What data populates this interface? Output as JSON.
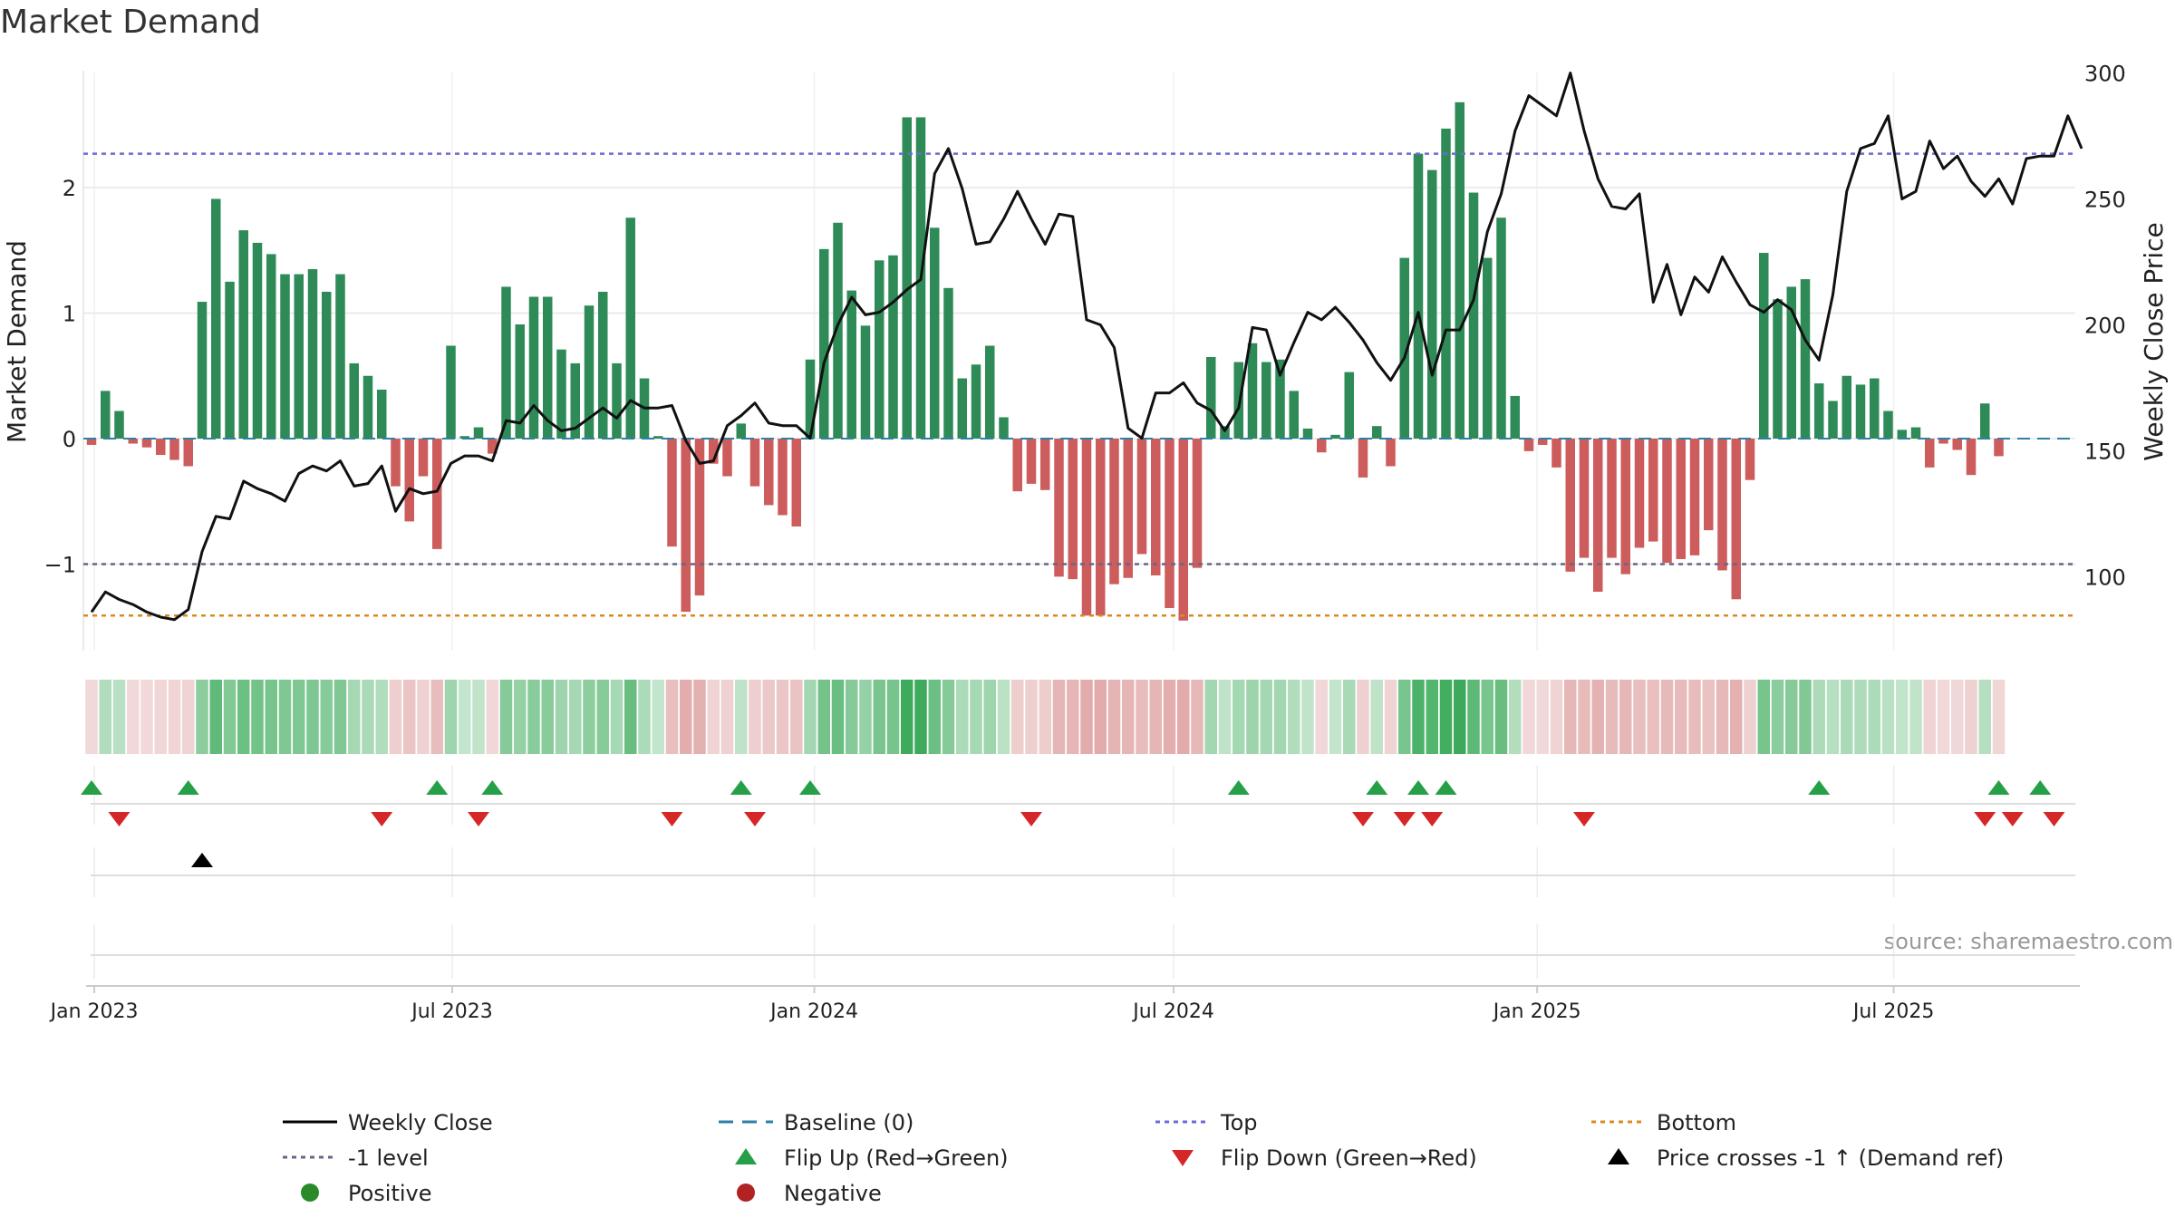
{
  "chart_data": {
    "type": "bar",
    "title": "Market Demand",
    "ylabel_left": "Market Demand",
    "ylabel_right": "Weekly Close Price",
    "ylim_left": [
      -1.7,
      2.9
    ],
    "ylim_right": [
      68,
      303
    ],
    "yticks_left": [
      -1,
      0,
      1,
      2
    ],
    "yticks_left_labels": [
      "−1",
      "0",
      "1",
      "2"
    ],
    "yticks_right": [
      100,
      150,
      200,
      250,
      300
    ],
    "xticks": [
      {
        "label": "Jan 2023",
        "week": 1.2
      },
      {
        "label": "Jul 2023",
        "week": 27.1
      },
      {
        "label": "Jan 2024",
        "week": 53.3
      },
      {
        "label": "Jul 2024",
        "week": 79.3
      },
      {
        "label": "Jan 2025",
        "week": 105.6
      },
      {
        "label": "Jul 2025",
        "week": 131.4
      }
    ],
    "start_week_offset": 1,
    "demand": [
      -0.05,
      0.38,
      0.22,
      -0.04,
      -0.07,
      -0.13,
      -0.17,
      -0.22,
      1.09,
      1.91,
      1.25,
      1.66,
      1.56,
      1.47,
      1.31,
      1.31,
      1.35,
      1.17,
      1.31,
      0.6,
      0.5,
      0.39,
      -0.38,
      -0.66,
      -0.3,
      -0.88,
      0.74,
      0.02,
      0.09,
      -0.12,
      1.21,
      0.91,
      1.13,
      1.13,
      0.71,
      0.6,
      1.06,
      1.17,
      0.6,
      1.76,
      0.48,
      0.02,
      -0.86,
      -1.38,
      -1.25,
      -0.2,
      -0.3,
      0.12,
      -0.38,
      -0.53,
      -0.61,
      -0.7,
      0.63,
      1.51,
      1.72,
      1.18,
      0.9,
      1.42,
      1.46,
      2.56,
      2.56,
      1.68,
      1.2,
      0.48,
      0.59,
      0.74,
      0.17,
      -0.42,
      -0.36,
      -0.41,
      -1.1,
      -1.12,
      -1.41,
      -1.41,
      -1.16,
      -1.11,
      -0.92,
      -1.09,
      -1.35,
      -1.45,
      -1.03,
      0.65,
      0.1,
      0.61,
      0.76,
      0.61,
      0.63,
      0.38,
      0.08,
      -0.11,
      0.03,
      0.53,
      -0.31,
      0.1,
      -0.22,
      1.44,
      2.27,
      2.14,
      2.47,
      2.68,
      1.96,
      1.44,
      1.76,
      0.34,
      -0.1,
      -0.05,
      -0.23,
      -1.06,
      -0.95,
      -1.22,
      -0.95,
      -1.08,
      -0.87,
      -0.82,
      -0.99,
      -0.96,
      -0.93,
      -0.73,
      -1.05,
      -1.28,
      -0.33,
      1.48,
      1.11,
      1.21,
      1.27,
      0.44,
      0.3,
      0.5,
      0.43,
      0.48,
      0.22,
      0.07,
      0.09,
      -0.23,
      -0.04,
      -0.09,
      -0.29,
      0.28,
      -0.14
    ],
    "close": [
      86,
      94,
      91,
      89,
      86,
      84,
      83,
      87,
      110,
      124,
      123,
      138,
      135,
      133,
      130,
      141,
      144,
      142,
      146,
      136,
      137,
      144,
      126,
      135,
      133,
      134,
      145,
      148,
      148,
      146,
      162,
      161,
      168,
      162,
      158,
      159,
      163,
      167,
      163,
      170,
      167,
      167,
      168,
      154,
      145,
      146,
      160,
      164,
      169,
      161,
      160,
      160,
      155,
      185,
      200,
      211,
      204,
      205,
      209,
      214,
      218,
      260,
      270,
      254,
      232,
      233,
      242,
      253,
      242,
      232,
      244,
      243,
      202,
      200,
      191,
      159,
      155,
      173,
      173,
      177,
      169,
      166,
      158,
      167,
      199,
      198,
      180,
      193,
      205,
      202,
      207,
      201,
      194,
      185,
      178,
      187,
      205,
      180,
      198,
      198,
      210,
      237,
      252,
      277,
      291,
      287,
      283,
      300,
      277,
      258,
      247,
      246,
      252,
      209,
      224,
      204,
      219,
      213,
      227,
      217,
      208,
      205,
      210,
      206,
      194,
      186,
      212,
      253,
      270,
      272,
      283,
      250,
      253,
      273,
      262,
      267,
      257,
      251,
      258,
      248,
      266,
      267,
      267,
      283,
      270
    ],
    "annotations": {
      "top_level": 2.27,
      "minus1_level": -1,
      "bottom_level": -1.41,
      "baseline": 0
    },
    "flip_up_weeks": [
      1,
      8,
      26,
      30,
      48,
      53,
      84,
      94,
      97,
      99,
      126,
      139,
      142
    ],
    "flip_down_weeks": [
      3,
      22,
      29,
      43,
      49,
      69,
      93,
      96,
      98,
      109,
      138,
      140,
      143
    ],
    "price_cross_weeks": [
      9
    ],
    "source": "source: sharemaestro.com",
    "legend": [
      {
        "label": "Weekly Close",
        "kind": "line-solid",
        "color": "#000000"
      },
      {
        "label": "Baseline (0)",
        "kind": "line-dash",
        "color": "#2e7fa9"
      },
      {
        "label": "Top",
        "kind": "line-dot",
        "color": "#6b6bd6"
      },
      {
        "label": "Bottom",
        "kind": "line-dot",
        "color": "#d98b22"
      },
      {
        "label": "-1 level",
        "kind": "line-dot",
        "color": "#666688"
      },
      {
        "label": "Flip Up (Red→Green)",
        "kind": "tri-up",
        "color": "#26a048"
      },
      {
        "label": "Flip Down (Green→Red)",
        "kind": "tri-down",
        "color": "#d62728"
      },
      {
        "label": "Price crosses -1 ↑ (Demand ref)",
        "kind": "tri-up",
        "color": "#000000"
      },
      {
        "label": "Positive",
        "kind": "dot",
        "color": "#2a8a2a"
      },
      {
        "label": "Negative",
        "kind": "dot",
        "color": "#b22222"
      }
    ],
    "colors": {
      "positive_bar": "#2e8b57",
      "negative_bar": "#cd5c5c",
      "close_line": "#111111",
      "grid": "#e6e6e6",
      "axis": "#cccccc",
      "text": "#222222",
      "source_text": "#999999"
    }
  }
}
